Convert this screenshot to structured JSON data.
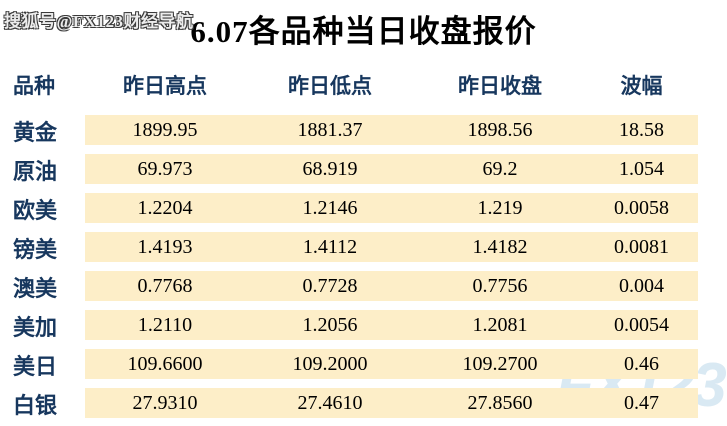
{
  "title": "6.07各品种当日收盘报价",
  "watermarks": {
    "top_left": "搜狐号@FX123财经导航",
    "bottom_right": "FX123"
  },
  "colors": {
    "row_band": "#fdeec8",
    "header_text": "#17375e",
    "label_text": "#17375e",
    "value_text": "#000000",
    "title_text": "#000000",
    "fx_watermark": "#d9e9f3"
  },
  "table": {
    "columns": [
      "品种",
      "昨日高点",
      "昨日低点",
      "昨日收盘",
      "波幅"
    ],
    "rows": [
      {
        "name": "黄金",
        "high": "1899.95",
        "low": "1881.37",
        "close": "1898.56",
        "range": "18.58"
      },
      {
        "name": "原油",
        "high": "69.973",
        "low": "68.919",
        "close": "69.2",
        "range": "1.054"
      },
      {
        "name": "欧美",
        "high": "1.2204",
        "low": "1.2146",
        "close": "1.219",
        "range": "0.0058"
      },
      {
        "name": "镑美",
        "high": "1.4193",
        "low": "1.4112",
        "close": "1.4182",
        "range": "0.0081"
      },
      {
        "name": "澳美",
        "high": "0.7768",
        "low": "0.7728",
        "close": "0.7756",
        "range": "0.004"
      },
      {
        "name": "美加",
        "high": "1.2110",
        "low": "1.2056",
        "close": "1.2081",
        "range": "0.0054"
      },
      {
        "name": "美日",
        "high": "109.6600",
        "low": "109.2000",
        "close": "109.2700",
        "range": "0.46"
      },
      {
        "name": "白银",
        "high": "27.9310",
        "low": "27.4610",
        "close": "27.8560",
        "range": "0.47"
      }
    ]
  },
  "chart_data": {
    "type": "table",
    "title": "6.07各品种当日收盘报价",
    "columns": [
      "品种",
      "昨日高点",
      "昨日低点",
      "昨日收盘",
      "波幅"
    ],
    "rows": [
      [
        "黄金",
        1899.95,
        1881.37,
        1898.56,
        18.58
      ],
      [
        "原油",
        69.973,
        68.919,
        69.2,
        1.054
      ],
      [
        "欧美",
        1.2204,
        1.2146,
        1.219,
        0.0058
      ],
      [
        "镑美",
        1.4193,
        1.4112,
        1.4182,
        0.0081
      ],
      [
        "澳美",
        0.7768,
        0.7728,
        0.7756,
        0.004
      ],
      [
        "美加",
        1.211,
        1.2056,
        1.2081,
        0.0054
      ],
      [
        "美日",
        109.66,
        109.2,
        109.27,
        0.46
      ],
      [
        "白银",
        27.931,
        27.461,
        27.856,
        0.47
      ]
    ]
  }
}
